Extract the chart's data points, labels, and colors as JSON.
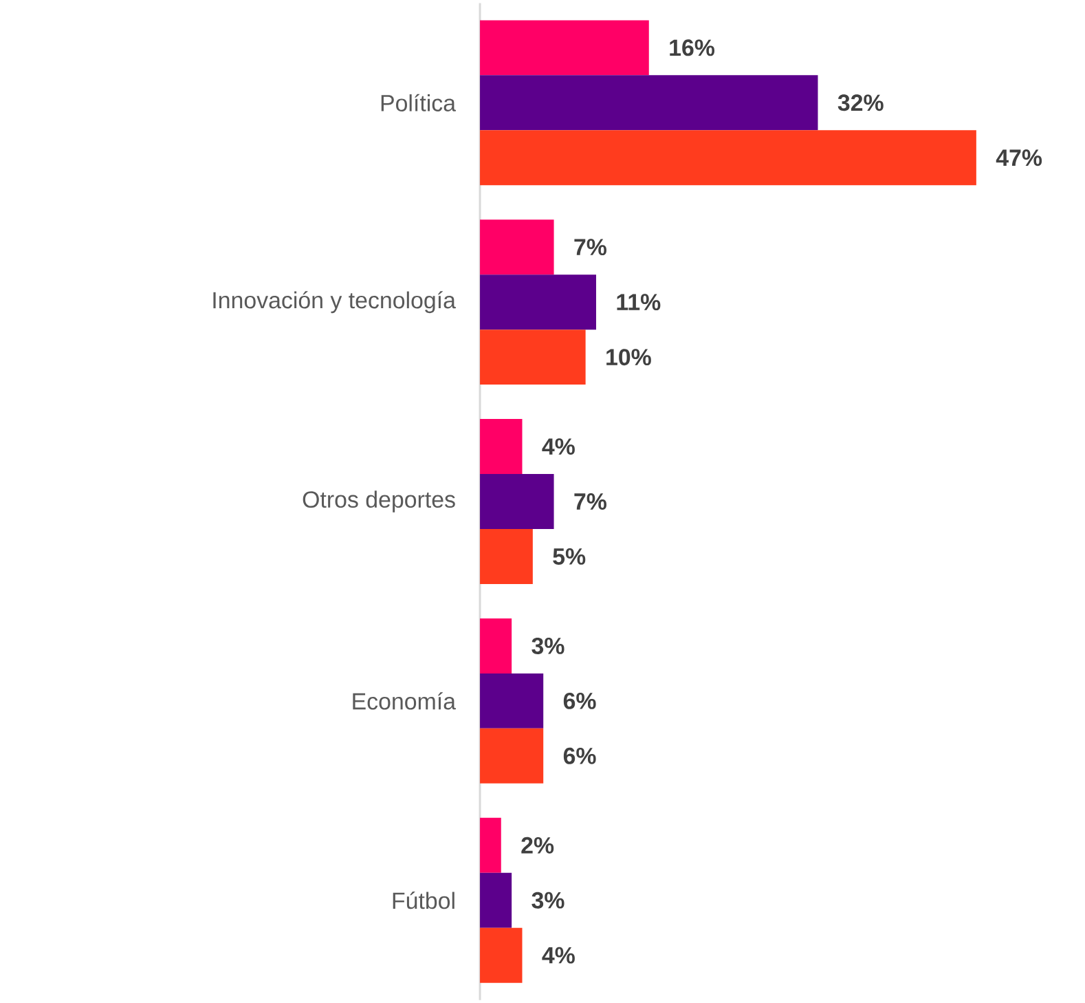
{
  "chart_data": {
    "type": "bar",
    "orientation": "horizontal",
    "categories": [
      "Política",
      "Innovación y tecnología",
      "Otros deportes",
      "Economía",
      "Fútbol"
    ],
    "series": [
      {
        "color": "#ff0066",
        "values": [
          16,
          7,
          4,
          3,
          2
        ],
        "value_labels": [
          "16%",
          "7%",
          "4%",
          "3%",
          "2%"
        ]
      },
      {
        "color": "#5c008c",
        "values": [
          32,
          11,
          7,
          6,
          3
        ],
        "value_labels": [
          "32%",
          "11%",
          "7%",
          "6%",
          "3%"
        ]
      },
      {
        "color": "#ff3c1e",
        "values": [
          47,
          10,
          5,
          6,
          4
        ],
        "value_labels": [
          "47%",
          "10%",
          "5%",
          "6%",
          "4%"
        ]
      }
    ],
    "tick_labels": "y"
  }
}
